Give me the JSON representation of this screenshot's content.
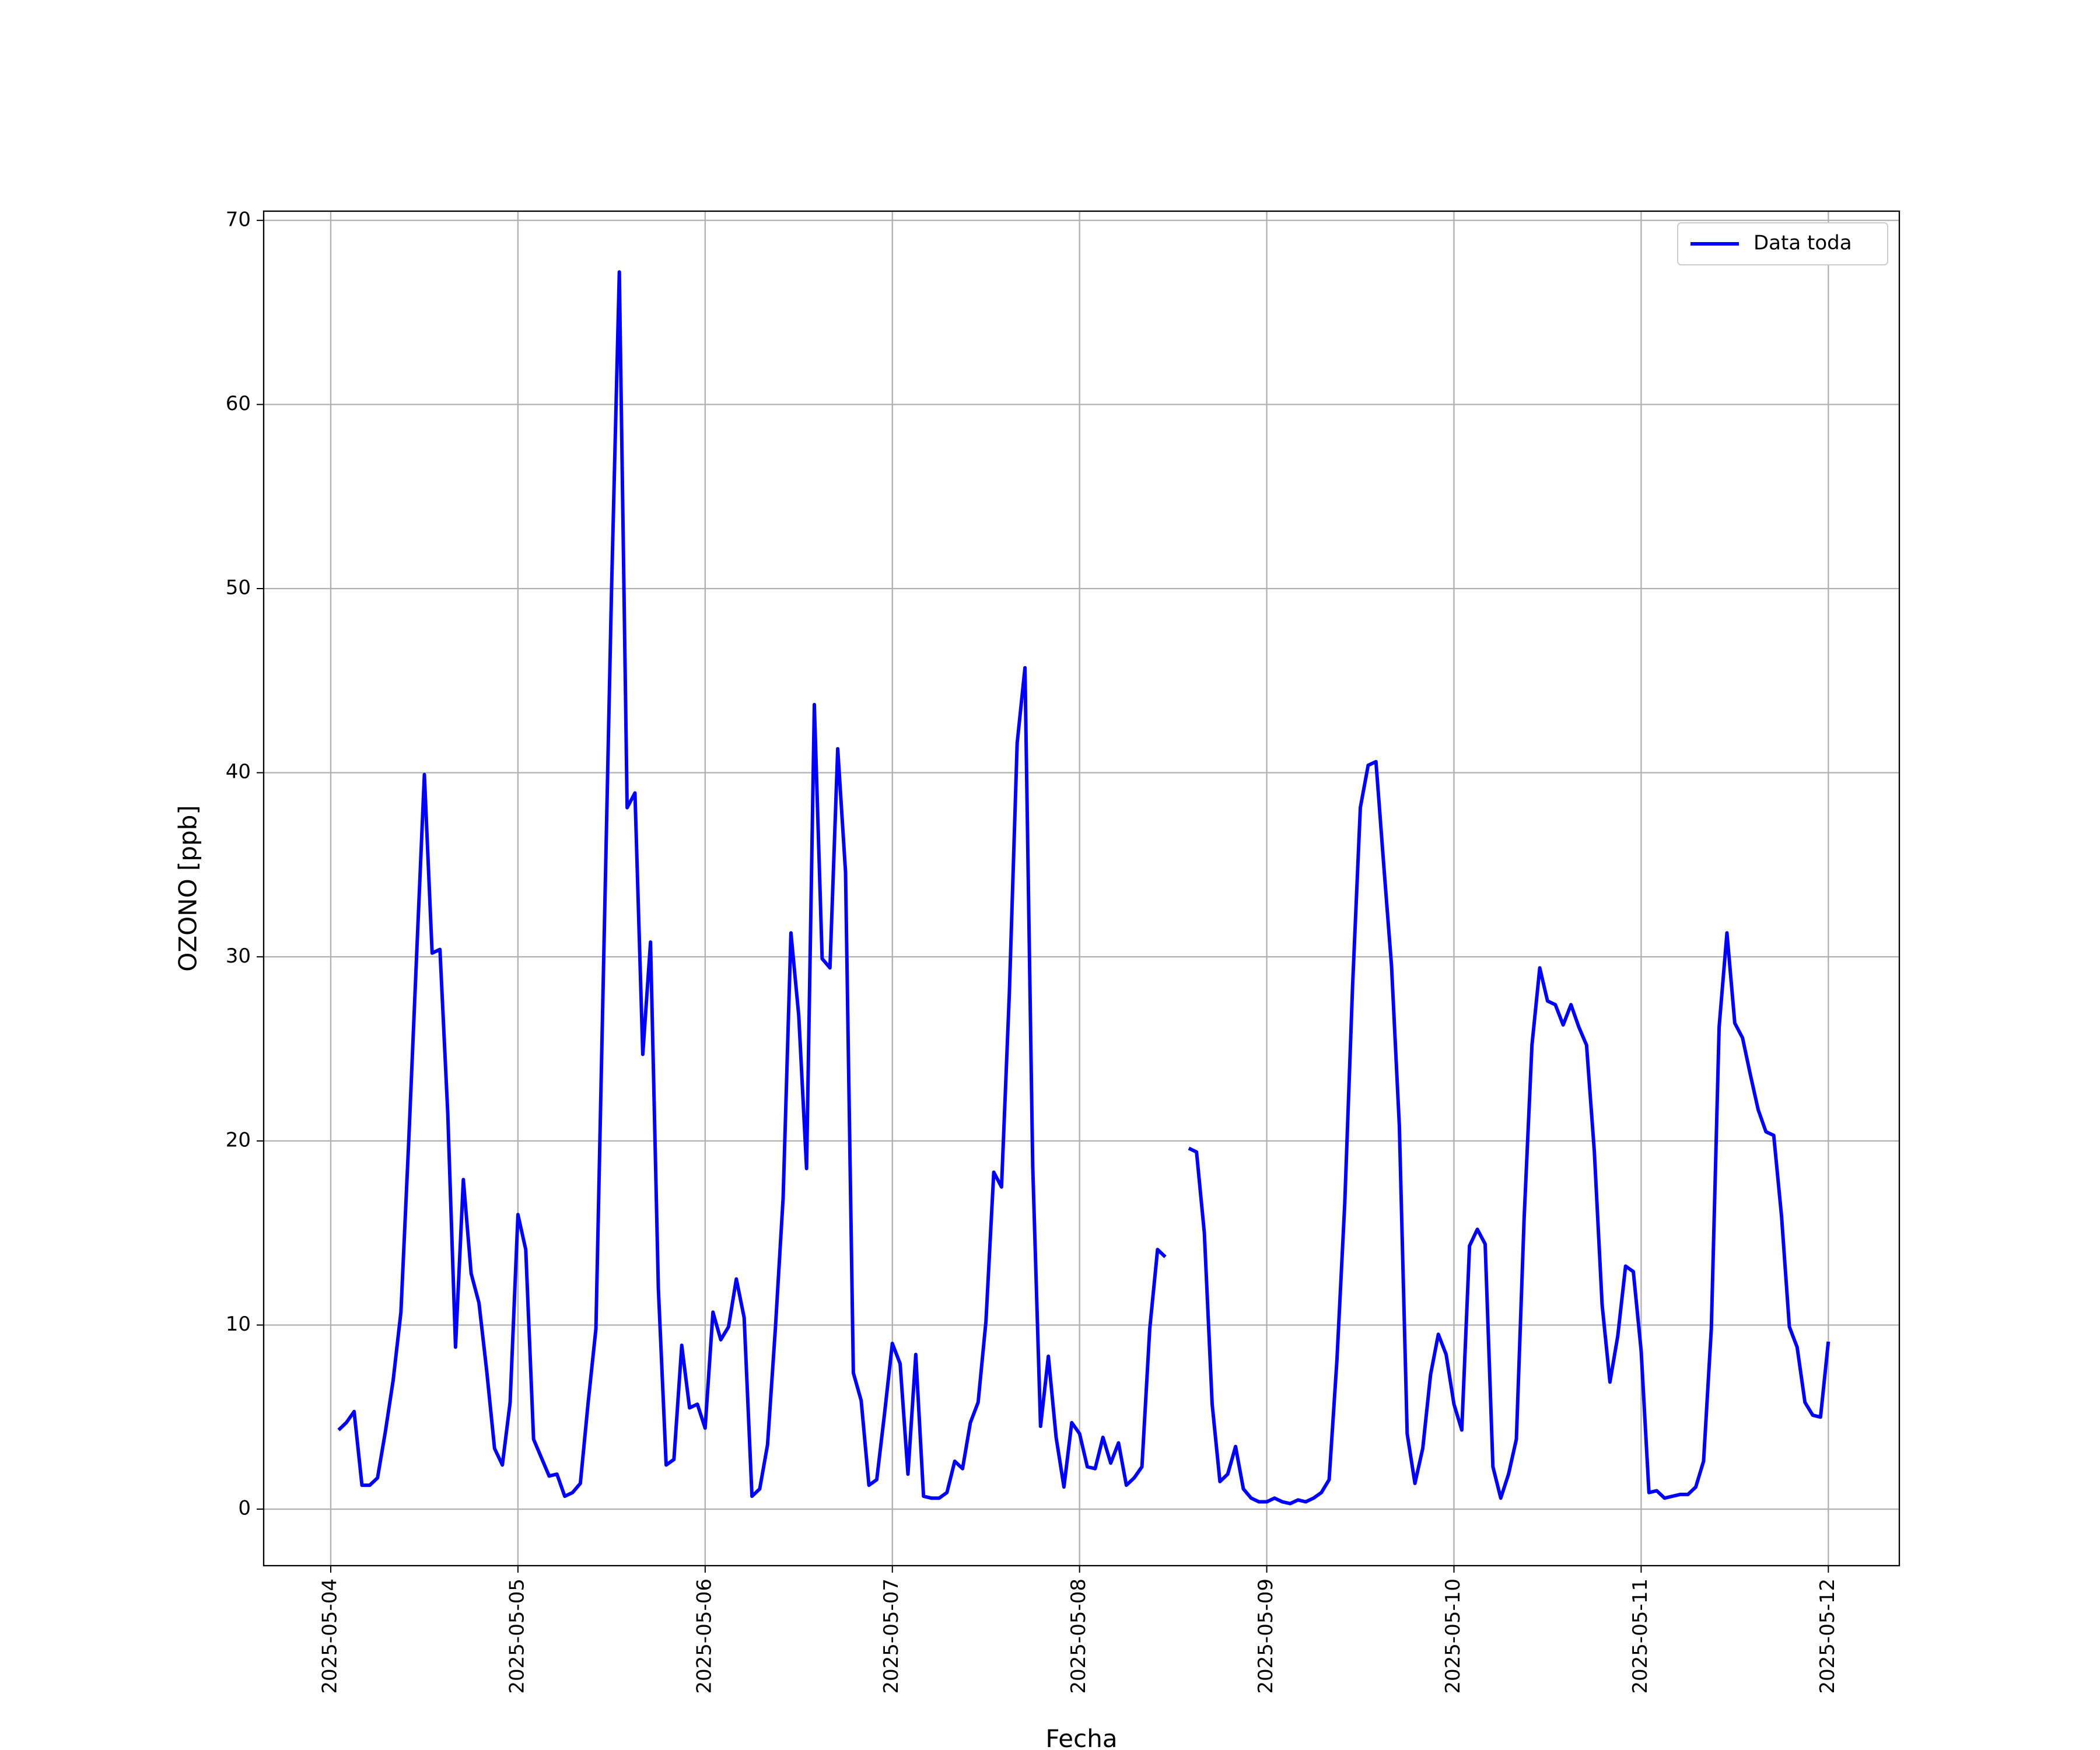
{
  "chart_data": {
    "type": "line",
    "xlabel": "Fecha",
    "ylabel": "OZONO [ppb]",
    "x": [
      1,
      2,
      3,
      4,
      5,
      6,
      7,
      8,
      9,
      10,
      11,
      12,
      13,
      14,
      15,
      16,
      17,
      18,
      19,
      20,
      21,
      22,
      23,
      24,
      25,
      26,
      27,
      28,
      29,
      30,
      31,
      32,
      33,
      34,
      35,
      36,
      37,
      38,
      39,
      40,
      41,
      42,
      43,
      44,
      45,
      46,
      47,
      48,
      49,
      50,
      51,
      52,
      53,
      54,
      55,
      56,
      57,
      58,
      59,
      60,
      61,
      62,
      63,
      64,
      65,
      66,
      67,
      68,
      69,
      70,
      71,
      72,
      73,
      74,
      75,
      76,
      77,
      78,
      79,
      80,
      81,
      82,
      83,
      84,
      85,
      86,
      87,
      88,
      89,
      90,
      91,
      92,
      93,
      94,
      95,
      96,
      97,
      98,
      99,
      100,
      101,
      102,
      103,
      104,
      105,
      106,
      107,
      108,
      109,
      110,
      111,
      112,
      113,
      114,
      115,
      116,
      117,
      118,
      119,
      120,
      121,
      122,
      123,
      124,
      125,
      126,
      127,
      128,
      129,
      130,
      131,
      132,
      133,
      134,
      135,
      136,
      137,
      138,
      139,
      140,
      141,
      142,
      143,
      144,
      145,
      146,
      147,
      148,
      149,
      150,
      151,
      152,
      153,
      154,
      155,
      156,
      157,
      158,
      159,
      160,
      161,
      162,
      163,
      164,
      165,
      166,
      167,
      168,
      169,
      170,
      171,
      172,
      173,
      174,
      175,
      176,
      177,
      178,
      179,
      180,
      181,
      182,
      183,
      184,
      185,
      186,
      187,
      188,
      189,
      190,
      191,
      192
    ],
    "series": [
      {
        "name": "Data toda",
        "color": "#0000ff",
        "values": [
          4.3,
          4.7,
          5.3,
          1.3,
          1.3,
          1.7,
          4.2,
          7.0,
          10.7,
          20,
          30,
          39.9,
          30.2,
          30.4,
          21.5,
          8.8,
          17.9,
          12.8,
          11.2,
          7.5,
          3.3,
          2.4,
          5.8,
          16.0,
          14.1,
          3.8,
          2.8,
          1.8,
          1.9,
          0.7,
          0.9,
          1.4,
          5.8,
          9.8,
          30,
          50,
          67.2,
          38.1,
          38.9,
          24.7,
          30.8,
          12,
          2.4,
          2.7,
          8.9,
          5.5,
          5.7,
          4.4,
          10.7,
          9.2,
          9.9,
          12.5,
          10.4,
          0.7,
          1.1,
          3.5,
          9.8,
          16.9,
          31.3,
          26.8,
          18.5,
          43.7,
          29.9,
          29.4,
          41.3,
          34.6,
          7.4,
          5.9,
          1.3,
          1.6,
          5.2,
          9.0,
          7.9,
          1.9,
          8.4,
          0.7,
          0.6,
          0.6,
          0.9,
          2.6,
          2.2,
          4.7,
          5.8,
          10.2,
          18.3,
          17.5,
          28,
          41.6,
          45.7,
          18.6,
          4.5,
          8.3,
          3.9,
          1.2,
          4.7,
          4.1,
          2.3,
          2.2,
          3.9,
          2.5,
          3.6,
          1.3,
          1.7,
          2.3,
          9.8,
          14.1,
          13.7,
          null,
          null,
          19.6,
          19.4,
          15,
          5.7,
          1.5,
          1.9,
          3.4,
          1.1,
          0.6,
          0.4,
          0.4,
          0.6,
          0.4,
          0.3,
          0.5,
          0.4,
          0.6,
          0.9,
          1.6,
          8.1,
          16.6,
          28.4,
          38.1,
          40.4,
          40.6,
          35,
          29.5,
          20.8,
          4.1,
          1.4,
          3.3,
          7.3,
          9.5,
          8.4,
          5.7,
          4.3,
          14.3,
          15.2,
          14.4,
          2.3,
          0.6,
          1.9,
          3.8,
          15.8,
          25.2,
          29.4,
          27.6,
          27.4,
          26.3,
          27.4,
          26.2,
          25.2,
          19.4,
          11.1,
          6.9,
          9.4,
          13.2,
          12.9,
          8.6,
          0.9,
          1.0,
          0.6,
          0.7,
          0.8,
          0.8,
          1.2,
          2.6,
          9.8,
          26.2,
          31.3,
          26.4,
          25.6,
          23.6,
          21.7,
          20.5,
          20.3,
          15.9,
          9.9,
          8.8,
          5.8,
          5.1,
          5.0,
          9.1
        ]
      }
    ],
    "xlim": [
      -8.6,
      201.1
    ],
    "xticks": [
      {
        "value": 0,
        "label": "2025-05-04"
      },
      {
        "value": 24,
        "label": "2025-05-05"
      },
      {
        "value": 48,
        "label": "2025-05-06"
      },
      {
        "value": 72,
        "label": "2025-05-07"
      },
      {
        "value": 96,
        "label": "2025-05-08"
      },
      {
        "value": 120,
        "label": "2025-05-09"
      },
      {
        "value": 144,
        "label": "2025-05-10"
      },
      {
        "value": 168,
        "label": "2025-05-11"
      },
      {
        "value": 192,
        "label": "2025-05-12"
      }
    ],
    "ylim": [
      -3.07,
      70.5
    ],
    "yticks": [
      0,
      10,
      20,
      30,
      40,
      50,
      60,
      70
    ],
    "grid": true,
    "legend": "upper right"
  }
}
